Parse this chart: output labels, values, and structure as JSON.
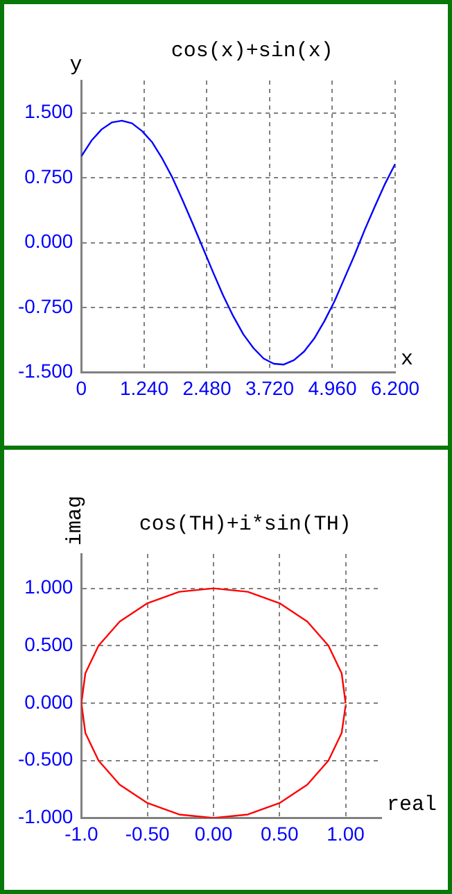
{
  "chart_data": [
    {
      "type": "line",
      "title": "cos(x)+sin(x)",
      "xlabel": "x",
      "ylabel": "y",
      "x": [
        0,
        0.2,
        0.4,
        0.6,
        0.8,
        1.0,
        1.2,
        1.4,
        1.6,
        1.8,
        2.0,
        2.2,
        2.4,
        2.6,
        2.8,
        3.0,
        3.2,
        3.4,
        3.6,
        3.8,
        4.0,
        4.2,
        4.4,
        4.6,
        4.8,
        5.0,
        5.2,
        5.4,
        5.6,
        5.8,
        6.0,
        6.2
      ],
      "series": [
        {
          "color": "#0000ff",
          "values": [
            1.0,
            1.18,
            1.31,
            1.39,
            1.41,
            1.38,
            1.29,
            1.16,
            0.97,
            0.75,
            0.49,
            0.22,
            -0.06,
            -0.34,
            -0.61,
            -0.85,
            -1.06,
            -1.22,
            -1.34,
            -1.4,
            -1.41,
            -1.36,
            -1.26,
            -1.11,
            -0.91,
            -0.68,
            -0.41,
            -0.14,
            0.15,
            0.42,
            0.68,
            0.91
          ]
        }
      ],
      "xlim": [
        0,
        6.2
      ],
      "xticks": [
        0,
        {
          "value": 1.24,
          "label": "1.240"
        },
        {
          "value": 2.48,
          "label": "2.480"
        },
        {
          "value": 3.72,
          "label": "3.720"
        },
        {
          "value": 4.96,
          "label": "4.960"
        },
        {
          "value": 6.2,
          "label": "6.200"
        }
      ],
      "ylim": [
        -1.5,
        1.875
      ],
      "yticks": [
        {
          "value": -1.5,
          "label": "-1.500"
        },
        {
          "value": -0.75,
          "label": "-0.750"
        },
        {
          "value": 0,
          "label": "0.000"
        },
        {
          "value": 0.75,
          "label": "0.750"
        },
        {
          "value": 1.5,
          "label": "1.500"
        }
      ],
      "grid": true,
      "legend": false,
      "marker": "none",
      "line_style": "solid"
    },
    {
      "type": "line",
      "title": "cos(TH)+i*sin(TH)",
      "xlabel": "real",
      "ylabel": "imag",
      "series": [
        {
          "color": "#ff0000",
          "x": [
            1,
            0.97,
            0.87,
            0.71,
            0.5,
            0.26,
            0,
            -0.26,
            -0.5,
            -0.71,
            -0.87,
            -0.97,
            -1,
            -0.97,
            -0.87,
            -0.71,
            -0.5,
            -0.26,
            0,
            0.26,
            0.5,
            0.71,
            0.87,
            0.97,
            1
          ],
          "values": [
            0,
            0.26,
            0.5,
            0.71,
            0.87,
            0.97,
            1,
            0.97,
            0.87,
            0.71,
            0.5,
            0.26,
            0,
            -0.26,
            -0.5,
            -0.71,
            -0.87,
            -0.97,
            -1,
            -0.97,
            -0.87,
            -0.71,
            -0.5,
            -0.26,
            -0.02
          ]
        }
      ],
      "xlim": [
        -1,
        1.27
      ],
      "xticks": [
        {
          "value": -1,
          "label": "-1.0"
        },
        {
          "value": -0.5,
          "label": "-0.50"
        },
        {
          "value": 0,
          "label": "0.00"
        },
        {
          "value": 0.5,
          "label": "0.50"
        },
        {
          "value": 1,
          "label": "1.00"
        }
      ],
      "ylim": [
        -1,
        1.3
      ],
      "yticks": [
        {
          "value": -1,
          "label": "-1.000"
        },
        {
          "value": -0.5,
          "label": "-0.500"
        },
        {
          "value": 0,
          "label": "0.000"
        },
        {
          "value": 0.5,
          "label": "0.500"
        },
        {
          "value": 1,
          "label": "1.000"
        }
      ],
      "grid": true,
      "legend": false,
      "marker": "none",
      "line_style": "solid"
    }
  ]
}
